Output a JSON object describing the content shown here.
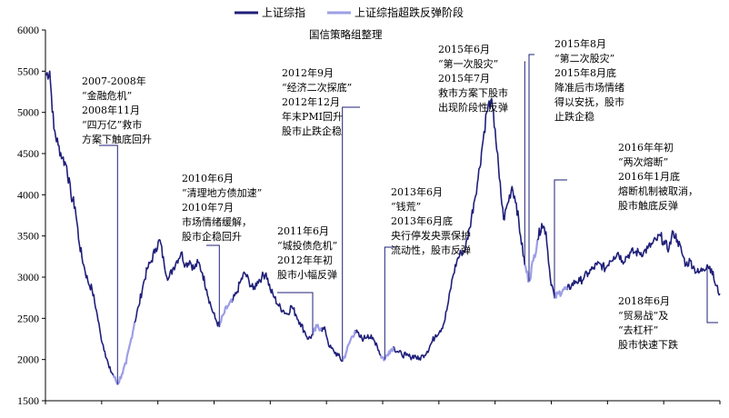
{
  "chart_data": {
    "type": "line",
    "credit": "国信策略组整理",
    "ylim": [
      1500,
      6000
    ],
    "yticks": [
      1500,
      2000,
      2500,
      3000,
      3500,
      4000,
      4500,
      5000,
      5500,
      6000
    ],
    "grid": false,
    "legend_position": "top",
    "colors": {
      "main": "#1f1f7a",
      "rebound": "#9d9fe6"
    },
    "series": [
      {
        "name": "上证综指",
        "color": "#1f1f7a",
        "values": [
          5450,
          5500,
          4800,
          4600,
          4450,
          4350,
          4000,
          3850,
          3400,
          3150,
          2950,
          2850,
          2600,
          2300,
          2100,
          1900,
          1810,
          1700,
          1820,
          1950,
          2200,
          2450,
          2650,
          2900,
          3100,
          3200,
          3350,
          3450,
          3150,
          2980,
          3100,
          3200,
          3300,
          3150,
          3200,
          3100,
          3180,
          3050,
          2850,
          2650,
          2500,
          2400,
          2550,
          2650,
          2700,
          2800,
          2950,
          3050,
          2950,
          2850,
          2950,
          3000,
          3050,
          2850,
          2750,
          2650,
          2600,
          2550,
          2650,
          2550,
          2450,
          2350,
          2250,
          2300,
          2400,
          2380,
          2350,
          2150,
          2100,
          2050,
          1980,
          2100,
          2250,
          2350,
          2280,
          2250,
          2300,
          2250,
          2200,
          2050,
          2000,
          2100,
          2150,
          2100,
          2060,
          2050,
          2030,
          2050,
          2000,
          2050,
          2100,
          2200,
          2300,
          2350,
          2450,
          2700,
          3000,
          3200,
          3300,
          3350,
          3600,
          3900,
          4200,
          4600,
          5000,
          5150,
          4800,
          4200,
          3700,
          3900,
          4100,
          3900,
          3500,
          3150,
          2950,
          3200,
          3450,
          3650,
          3550,
          3000,
          2750,
          2800,
          2850,
          2850,
          2900,
          2950,
          2950,
          3000,
          3050,
          3100,
          3150,
          3150,
          3100,
          3200,
          3250,
          3300,
          3200,
          3250,
          3300,
          3300,
          3300,
          3300,
          3350,
          3400,
          3450,
          3500,
          3400,
          3350,
          3550,
          3450,
          3300,
          3150,
          3200,
          3100,
          3050,
          3100,
          3150,
          3100,
          2900,
          2800
        ]
      },
      {
        "name": "上证综指超跌反弹阶段",
        "color": "#9d9fe6",
        "segments": [
          [
            16,
            21
          ],
          [
            41,
            44
          ],
          [
            63,
            65
          ],
          [
            70,
            73
          ],
          [
            79,
            82
          ],
          [
            113,
            116
          ],
          [
            120,
            123
          ]
        ]
      }
    ],
    "annotations": [
      {
        "idx": 17,
        "lines": [
          "2007-2008年",
          "“金融危机”",
          "2008年11月",
          "“四万亿”救市",
          "方案下触底回升"
        ]
      },
      {
        "idx": 41,
        "lines": [
          "2010年6月",
          "“清理地方债加速”",
          "2010年7月",
          "市场情绪缓解，",
          "股市企稳回升"
        ]
      },
      {
        "idx": 63,
        "lines": [
          "2011年6月",
          "“城投债危机”",
          "2012年年初",
          "股市小幅反弹"
        ]
      },
      {
        "idx": 70,
        "lines": [
          "2012年9月",
          "“经济二次探底”",
          "2012年12月",
          "年末PMI回升",
          "股市止跌企稳"
        ]
      },
      {
        "idx": 80,
        "lines": [
          "2013年6月",
          "“钱荒”",
          "2013年6月底",
          "央行停发央票保护",
          "流动性，股市反弹"
        ]
      },
      {
        "idx": 113,
        "lines": [
          "2015年6月",
          "“第一次股灾”",
          "2015年7月",
          "救市方案下股市",
          "出现阶段性反弹"
        ]
      },
      {
        "idx": 114,
        "lines": [
          "2015年8月",
          "“第二次股灾”",
          "2015年8月底",
          "降准后市场情绪",
          "得以安抚，股市",
          "止跌企稳"
        ]
      },
      {
        "idx": 120,
        "lines": [
          "2016年年初",
          "“两次熔断”",
          "2016年1月底",
          "熔断机制被取消，",
          "股市触底反弹"
        ]
      },
      {
        "idx": 156,
        "lines": [
          "2018年6月",
          "“贸易战”及",
          "“去杠杆”",
          "股市快速下跌"
        ]
      }
    ]
  }
}
